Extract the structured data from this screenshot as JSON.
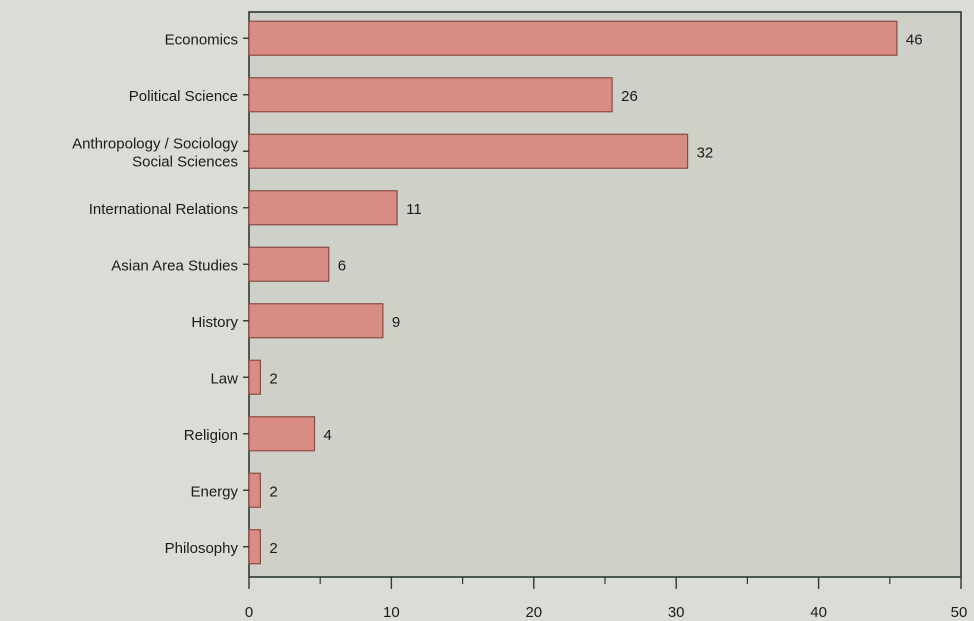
{
  "chart_data": {
    "type": "bar",
    "orientation": "horizontal",
    "categories": [
      [
        "Economics"
      ],
      [
        "Political Science"
      ],
      [
        "Anthropology / Sociology",
        "Social Sciences"
      ],
      [
        "International Relations"
      ],
      [
        "Asian Area Studies"
      ],
      [
        "History"
      ],
      [
        "Law"
      ],
      [
        "Religion"
      ],
      [
        "Energy"
      ],
      [
        "Philosophy"
      ]
    ],
    "values": [
      46,
      26,
      32,
      11,
      6,
      9,
      2,
      4,
      2,
      2
    ],
    "bar_lengths": [
      45.5,
      25.5,
      30.8,
      10.4,
      5.6,
      9.4,
      0.8,
      4.6,
      0.8,
      0.8
    ],
    "xlim": [
      0,
      50
    ],
    "xticks": [
      0,
      10,
      20,
      30,
      40,
      50
    ],
    "title": "",
    "xlabel": "",
    "ylabel": "",
    "grid": false,
    "legend": "none",
    "colors": {
      "bar_fill": "#d98c84",
      "bar_stroke": "#8a4a44",
      "plot_bg": "#cfd0c8",
      "axis": "#2b3b2e"
    }
  }
}
